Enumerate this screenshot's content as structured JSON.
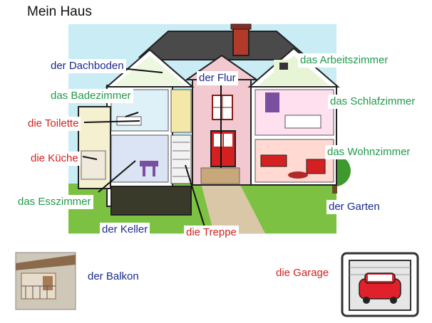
{
  "title": "Mein Haus",
  "labels": {
    "dachboden": "der Dachboden",
    "badezimmer": "das Badezimmer",
    "toilette": "die Toilette",
    "kueche": "die Küche",
    "esszimmer": "das Esszimmer",
    "keller": "der Keller",
    "treppe": "die Treppe",
    "flur": "der Flur",
    "arbeitszimmer": "das Arbeitszimmer",
    "schlafzimmer": "das Schlafzimmer",
    "wohnzimmer": "das Wohnzimmer",
    "garten": "der Garten",
    "balkon": "der Balkon",
    "garage": "die Garage"
  },
  "colors": {
    "blue_label": "#1a2a8c",
    "green_label": "#1f9a4a",
    "red_label": "#d0221f",
    "sky": "#c9ecf5",
    "lawn": "#7cc142",
    "roof": "#4a4a4a",
    "chimney": "#b23a2a",
    "front_door": "#d42020",
    "car": "#e0202a"
  }
}
